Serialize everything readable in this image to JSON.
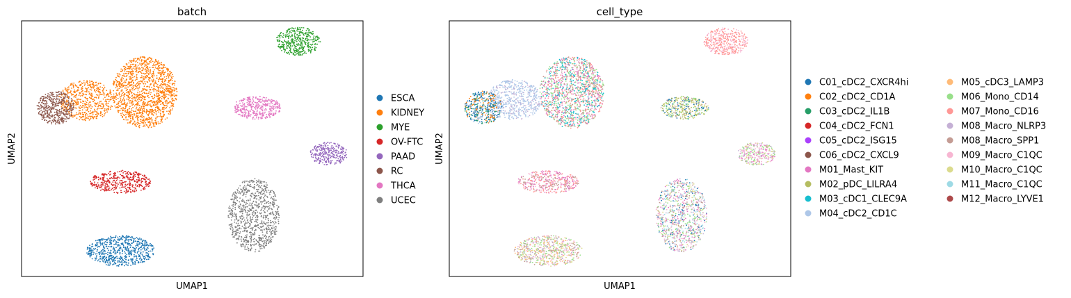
{
  "chart_data": [
    {
      "type": "scatter",
      "title": "batch",
      "xlabel": "UMAP1",
      "ylabel": "UMAP2",
      "grid": false,
      "legend_placement": "right",
      "legend": [
        {
          "label": "ESCA",
          "color": "#1f77b4"
        },
        {
          "label": "KIDNEY",
          "color": "#ff7f0e"
        },
        {
          "label": "MYE",
          "color": "#2ca02c"
        },
        {
          "label": "OV-FTC",
          "color": "#d62728"
        },
        {
          "label": "PAAD",
          "color": "#9467bd"
        },
        {
          "label": "RC",
          "color": "#8c564b"
        },
        {
          "label": "THCA",
          "color": "#e377c2"
        },
        {
          "label": "UCEC",
          "color": "#7f7f7f"
        }
      ],
      "clusters": [
        {
          "label": "KIDNEY",
          "cx": 0.36,
          "cy": 0.72,
          "rx": 0.095,
          "ry": 0.14,
          "n": 1400
        },
        {
          "label": "KIDNEY",
          "cx": 0.19,
          "cy": 0.69,
          "rx": 0.08,
          "ry": 0.08,
          "n": 550
        },
        {
          "label": "RC",
          "cx": 0.1,
          "cy": 0.66,
          "rx": 0.055,
          "ry": 0.065,
          "n": 450
        },
        {
          "label": "MYE",
          "cx": 0.81,
          "cy": 0.92,
          "rx": 0.065,
          "ry": 0.055,
          "n": 400
        },
        {
          "label": "THCA",
          "cx": 0.69,
          "cy": 0.66,
          "rx": 0.07,
          "ry": 0.045,
          "n": 380
        },
        {
          "label": "PAAD",
          "cx": 0.9,
          "cy": 0.48,
          "rx": 0.055,
          "ry": 0.045,
          "n": 300
        },
        {
          "label": "OV-FTC",
          "cx": 0.29,
          "cy": 0.37,
          "rx": 0.09,
          "ry": 0.045,
          "n": 420
        },
        {
          "label": "UCEC",
          "cx": 0.68,
          "cy": 0.24,
          "rx": 0.075,
          "ry": 0.145,
          "n": 900
        },
        {
          "label": "ESCA",
          "cx": 0.29,
          "cy": 0.1,
          "rx": 0.1,
          "ry": 0.06,
          "n": 650
        }
      ]
    },
    {
      "type": "scatter",
      "title": "cell_type",
      "xlabel": "UMAP1",
      "ylabel": "UMAP2",
      "grid": false,
      "legend_placement": "right",
      "legend": [
        {
          "label": "C01_cDC2_CXCR4hi",
          "color": "#1f77b4"
        },
        {
          "label": "C02_cDC2_CD1A",
          "color": "#ff7f0e"
        },
        {
          "label": "C03_cDC2_IL1B",
          "color": "#279e68"
        },
        {
          "label": "C04_cDC2_FCN1",
          "color": "#d62728"
        },
        {
          "label": "C05_cDC2_ISG15",
          "color": "#aa40fc"
        },
        {
          "label": "C06_cDC2_CXCL9",
          "color": "#8c564b"
        },
        {
          "label": "M01_Mast_KIT",
          "color": "#e377c2"
        },
        {
          "label": "M02_pDC_LILRA4",
          "color": "#b5bd61"
        },
        {
          "label": "M03_cDC1_CLEC9A",
          "color": "#17becf"
        },
        {
          "label": "M04_cDC2_CD1C",
          "color": "#aec7e8"
        },
        {
          "label": "M05_cDC3_LAMP3",
          "color": "#ffbb78"
        },
        {
          "label": "M06_Mono_CD14",
          "color": "#98df8a"
        },
        {
          "label": "M07_Mono_CD16",
          "color": "#ff9896"
        },
        {
          "label": "M08_Macro_NLRP3",
          "color": "#c5b0d5"
        },
        {
          "label": "M08_Macro_SPP1",
          "color": "#c49c94"
        },
        {
          "label": "M09_Macro_C1QC",
          "color": "#f7b6d2"
        },
        {
          "label": "M10_Macro_C1QC",
          "color": "#dbdb8d"
        },
        {
          "label": "M11_Macro_C1QC",
          "color": "#9edae5"
        },
        {
          "label": "M12_Macro_LYVE1",
          "color": "#ad494a"
        }
      ],
      "clusters": [
        {
          "mix": [
            14,
            6,
            12,
            8,
            11
          ],
          "cx": 0.36,
          "cy": 0.72,
          "rx": 0.095,
          "ry": 0.14,
          "n": 1400
        },
        {
          "mix": [
            9,
            9,
            9,
            13
          ],
          "cx": 0.19,
          "cy": 0.69,
          "rx": 0.08,
          "ry": 0.08,
          "n": 550
        },
        {
          "mix": [
            0,
            1,
            0,
            9,
            2
          ],
          "cx": 0.1,
          "cy": 0.66,
          "rx": 0.055,
          "ry": 0.065,
          "n": 450
        },
        {
          "mix": [
            12,
            12,
            15
          ],
          "cx": 0.81,
          "cy": 0.92,
          "rx": 0.065,
          "ry": 0.055,
          "n": 400
        },
        {
          "mix": [
            14,
            0,
            16,
            11,
            7
          ],
          "cx": 0.69,
          "cy": 0.66,
          "rx": 0.07,
          "ry": 0.045,
          "n": 380
        },
        {
          "mix": [
            15,
            6,
            11,
            16,
            13
          ],
          "cx": 0.9,
          "cy": 0.48,
          "rx": 0.055,
          "ry": 0.045,
          "n": 300
        },
        {
          "mix": [
            14,
            15,
            12,
            6
          ],
          "cx": 0.29,
          "cy": 0.37,
          "rx": 0.09,
          "ry": 0.045,
          "n": 420
        },
        {
          "mix": [
            6,
            11,
            17,
            14,
            0,
            13,
            15,
            16
          ],
          "cx": 0.68,
          "cy": 0.24,
          "rx": 0.075,
          "ry": 0.145,
          "n": 900
        },
        {
          "mix": [
            14,
            16,
            13,
            11,
            15,
            10
          ],
          "cx": 0.29,
          "cy": 0.1,
          "rx": 0.1,
          "ry": 0.06,
          "n": 650
        }
      ]
    }
  ]
}
